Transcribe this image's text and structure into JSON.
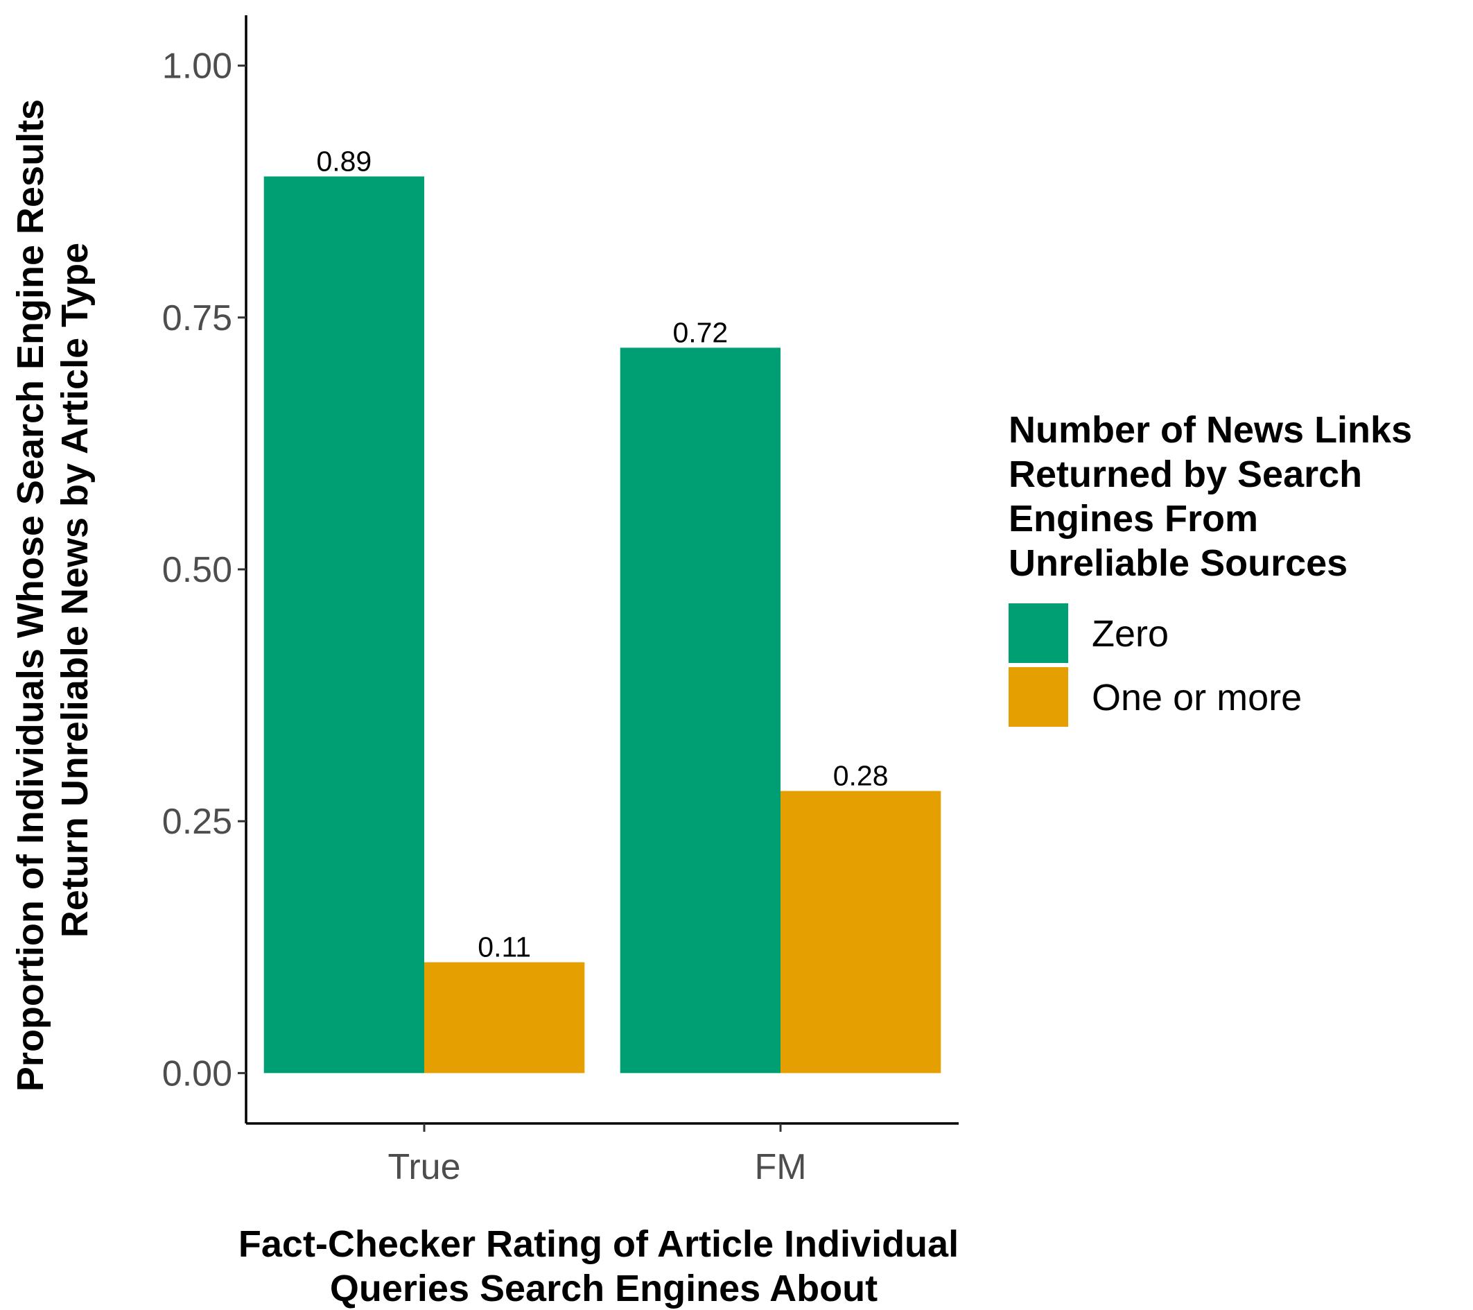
{
  "chart_data": {
    "type": "bar",
    "categories": [
      "True",
      "FM"
    ],
    "series": [
      {
        "name": "Zero",
        "values": [
          0.89,
          0.72
        ],
        "color": "#009E73"
      },
      {
        "name": "One or more",
        "values": [
          0.11,
          0.28
        ],
        "color": "#E69F00"
      }
    ],
    "data_labels": {
      "Zero": [
        "0.89",
        "0.72"
      ],
      "One or more": [
        "0.11",
        "0.28"
      ]
    },
    "ylim": [
      -0.05,
      1.05
    ],
    "yticks": [
      0.0,
      0.25,
      0.5,
      0.75,
      1.0
    ],
    "ytick_labels": [
      "0.00",
      "0.25",
      "0.50",
      "0.75",
      "1.00"
    ],
    "xlabel_lines": [
      "Fact-Checker Rating of Article Individual",
      "Queries Search Engines About"
    ],
    "ylabel_lines": [
      "Proportion of Individuals Whose Search Engine Results",
      "Return Unreliable News by Article Type"
    ],
    "legend": {
      "title_lines": [
        "Number of News Links",
        "Returned by Search",
        "Engines From",
        "Unreliable Sources"
      ],
      "position": "right"
    },
    "grid": false
  }
}
